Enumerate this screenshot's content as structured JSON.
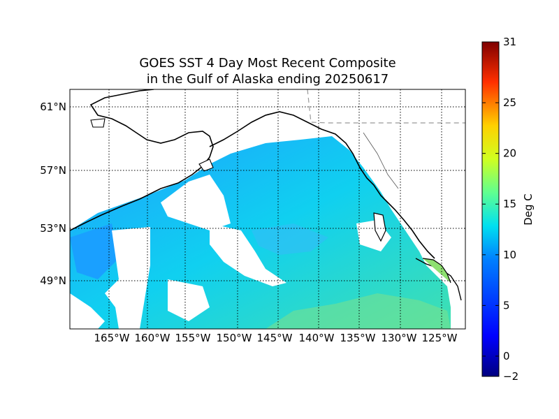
{
  "title": {
    "line1": "GOES SST 4 Day Most Recent Composite",
    "line2": "in the Gulf of Alaska ending 20250617"
  },
  "map": {
    "lat_labels": [
      "61°N",
      "57°N",
      "53°N",
      "49°N"
    ],
    "lon_labels": [
      "165°W",
      "160°W",
      "155°W",
      "150°W",
      "145°W",
      "140°W",
      "135°W",
      "130°W",
      "125°W"
    ],
    "land_color": "#ffffff",
    "coast_color": "#000000",
    "ocean_cool": "#1e90ff",
    "ocean_mid": "#00d7e6",
    "ocean_warm": "#5fe3a0"
  },
  "colorbar": {
    "label": "Deg C",
    "min": -2,
    "max": 31,
    "ticks": [
      "31",
      "25",
      "20",
      "15",
      "10",
      "5",
      "0",
      "−2"
    ],
    "tick_values": [
      31,
      25,
      20,
      15,
      10,
      5,
      0,
      -2
    ]
  }
}
